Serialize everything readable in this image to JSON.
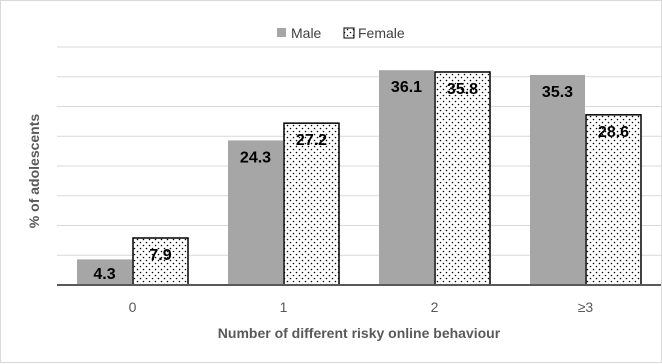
{
  "chart_data": {
    "type": "bar",
    "title": "",
    "xlabel": "Number of different risky online behaviour",
    "ylabel": "% of adolescents",
    "categories": [
      "0",
      "1",
      "2",
      "≥3"
    ],
    "series": [
      {
        "name": "Male",
        "values": [
          4.3,
          24.3,
          36.1,
          35.3
        ],
        "color": "#a6a6a6",
        "pattern": "solid"
      },
      {
        "name": "Female",
        "values": [
          7.9,
          27.2,
          35.8,
          28.6
        ],
        "color": "#ffffff",
        "pattern": "dotted"
      }
    ],
    "data_labels": [
      [
        "4.3",
        "24.3",
        "36.1",
        "35.3"
      ],
      [
        "7.9",
        "27.2",
        "35.8",
        "28.6"
      ]
    ],
    "ylim": [
      0,
      40
    ],
    "grid": true,
    "legend_position": "top"
  }
}
